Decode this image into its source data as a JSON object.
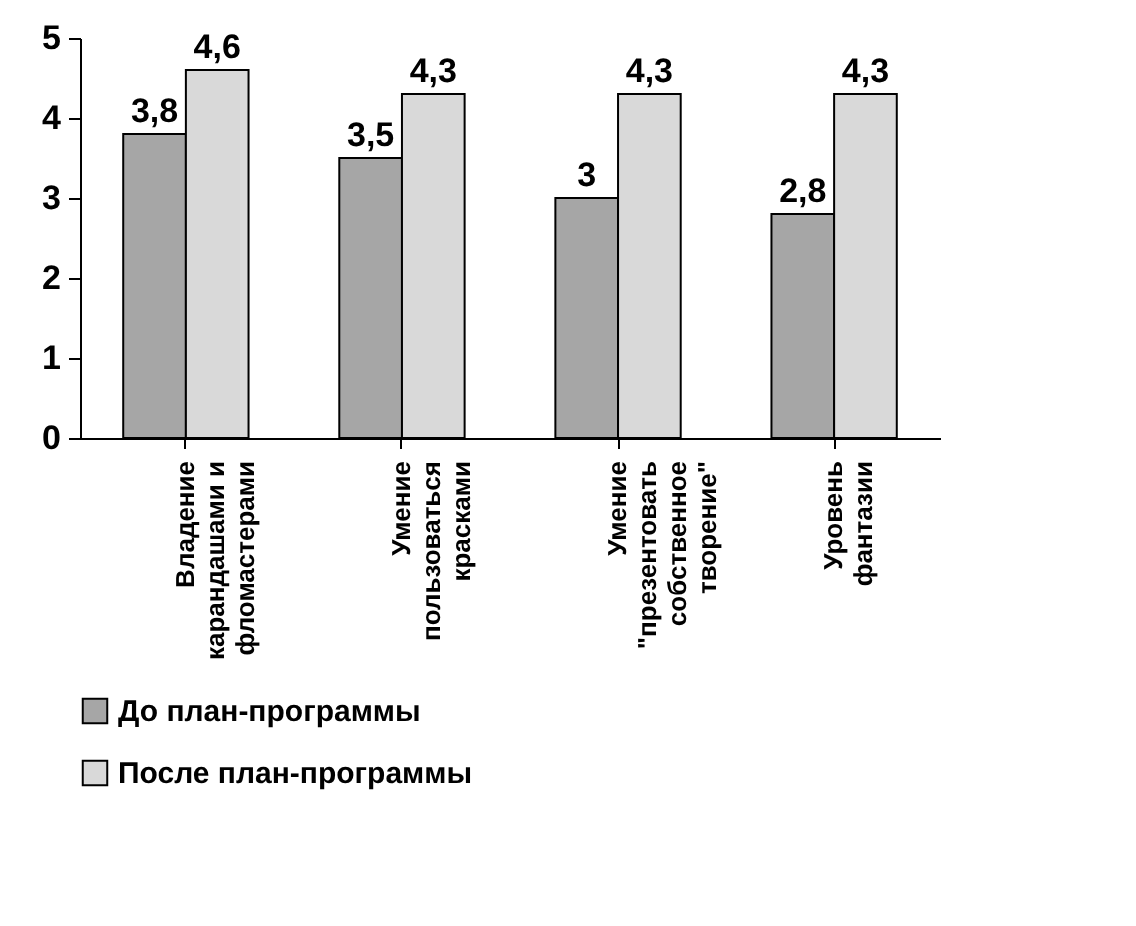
{
  "chart_data": {
    "type": "bar",
    "categories": [
      "Владение\nкарандашами и\nфломастерами",
      "Умение\nпользоваться\nкрасками",
      "Умение\n\"презентовать\nсобственное\nтворение\"",
      "Уровень\nфантазии"
    ],
    "series": [
      {
        "name": "До план-программы",
        "color": "#a6a6a6",
        "values": [
          3.8,
          3.5,
          3,
          2.8
        ],
        "value_labels": [
          "3,8",
          "3,5",
          "3",
          "2,8"
        ]
      },
      {
        "name": "После план-программы",
        "color": "#d9d9d9",
        "values": [
          4.6,
          4.3,
          4.3,
          4.3
        ],
        "value_labels": [
          "4,6",
          "4,3",
          "4,3",
          "4,3"
        ]
      }
    ],
    "ylim": [
      0,
      5
    ],
    "yticks": [
      0,
      1,
      2,
      3,
      4,
      5
    ],
    "legend": "bottom",
    "grid": false
  }
}
